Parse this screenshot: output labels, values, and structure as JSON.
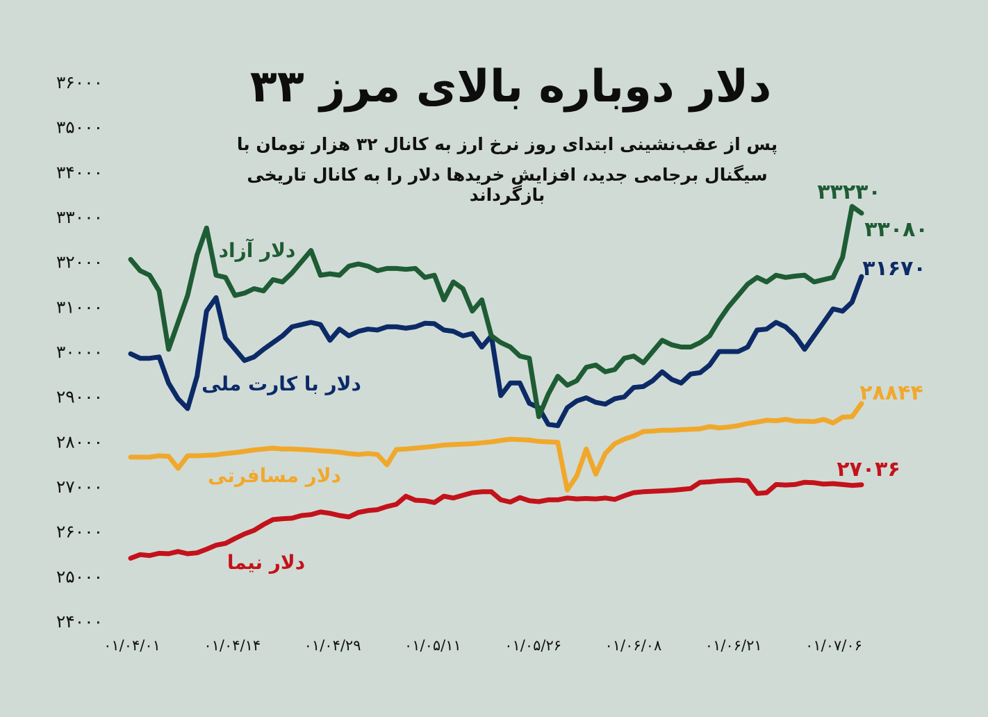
{
  "chart_data": {
    "type": "line",
    "title": "دلار دوباره بالای مرز ۳۳",
    "subtitle": [
      "پس از عقب‌نشینی ابتدای روز نرخ ارز به کانال ۳۲ هزار تومان با",
      "سیگنال برجامی جدید، افزایش خریدها دلار را به کانال تاریخی بازگرداند"
    ],
    "ylim": [
      24000,
      36000
    ],
    "yticks": [
      "۳۶۰۰۰",
      "۳۵۰۰۰",
      "۳۴۰۰۰",
      "۳۳۰۰۰",
      "۳۲۰۰۰",
      "۳۱۰۰۰",
      "۳۰۰۰۰",
      "۲۹۰۰۰",
      "۲۸۰۰۰",
      "۲۷۰۰۰",
      "۲۶۰۰۰",
      "۲۵۰۰۰",
      "۲۴۰۰۰"
    ],
    "xticks": [
      "۰۱/۰۴/۰۱",
      "۰۱/۰۴/۱۴",
      "۰۱/۰۴/۲۹",
      "۰۱/۰۵/۱۱",
      "۰۱/۰۵/۲۶",
      "۰۱/۰۶/۰۸",
      "۰۱/۰۶/۲۱",
      "۰۱/۰۷/۰۶"
    ],
    "grid": false,
    "legend": "inline labels",
    "series": [
      {
        "name": "دلار آزاد",
        "color": "#1e5c34",
        "end_labels": [
          "۳۳۲۳۰",
          "۳۳۰۸۰"
        ],
        "values": [
          32050,
          31800,
          31700,
          31350,
          30050,
          30650,
          31250,
          32150,
          32750,
          31700,
          31650,
          31250,
          31300,
          31400,
          31350,
          31600,
          31550,
          31750,
          32000,
          32250,
          31700,
          31730,
          31700,
          31900,
          31950,
          31900,
          31800,
          31850,
          31850,
          31830,
          31850,
          31650,
          31700,
          31150,
          31550,
          31400,
          30900,
          31150,
          30350,
          30200,
          30100,
          29900,
          29850,
          28550,
          29050,
          29450,
          29250,
          29350,
          29650,
          29700,
          29550,
          29600,
          29850,
          29900,
          29750,
          30000,
          30250,
          30150,
          30100,
          30100,
          30200,
          30350,
          30700,
          31000,
          31250,
          31500,
          31650,
          31550,
          31700,
          31650,
          31680,
          31700,
          31550,
          31600,
          31650,
          32100,
          33230,
          33080
        ]
      },
      {
        "name": "دلار با کارت ملی",
        "color": "#0c2a66",
        "end_labels": [
          "۳۱۶۷۰"
        ],
        "values": [
          29950,
          29850,
          29850,
          29880,
          29300,
          28950,
          28730,
          29450,
          30900,
          31200,
          30300,
          30050,
          29800,
          29880,
          30050,
          30200,
          30350,
          30550,
          30600,
          30650,
          30600,
          30250,
          30500,
          30350,
          30450,
          30500,
          30480,
          30550,
          30550,
          30520,
          30550,
          30630,
          30620,
          30480,
          30450,
          30350,
          30400,
          30100,
          30350,
          29020,
          29300,
          29300,
          28850,
          28750,
          28380,
          28350,
          28750,
          28900,
          28970,
          28870,
          28830,
          28950,
          28990,
          29200,
          29220,
          29350,
          29550,
          29380,
          29300,
          29500,
          29530,
          29700,
          30000,
          30000,
          30000,
          30100,
          30480,
          30500,
          30650,
          30550,
          30350,
          30050,
          30350,
          30650,
          30950,
          30900,
          31100,
          31670
        ]
      },
      {
        "name": "دلار مسافرتی",
        "color": "#f0a82c",
        "end_labels": [
          "۲۸۸۴۴"
        ],
        "values": [
          27650,
          27650,
          27650,
          27680,
          27670,
          27400,
          27680,
          27680,
          27690,
          27700,
          27730,
          27750,
          27780,
          27810,
          27830,
          27850,
          27830,
          27830,
          27820,
          27810,
          27790,
          27780,
          27760,
          27730,
          27710,
          27730,
          27710,
          27480,
          27820,
          27830,
          27850,
          27870,
          27890,
          27920,
          27930,
          27940,
          27950,
          27970,
          27990,
          28020,
          28050,
          28040,
          28030,
          28000,
          27990,
          27980,
          26920,
          27230,
          27830,
          27270,
          27730,
          27950,
          28050,
          28120,
          28220,
          28230,
          28250,
          28250,
          28260,
          28270,
          28280,
          28330,
          28300,
          28320,
          28350,
          28400,
          28430,
          28470,
          28460,
          28490,
          28450,
          28450,
          28440,
          28490,
          28410,
          28540,
          28550,
          28844
        ]
      },
      {
        "name": "دلار نیما",
        "color": "#c3121a",
        "end_labels": [
          "۲۷۰۳۶"
        ],
        "values": [
          25400,
          25480,
          25460,
          25510,
          25500,
          25550,
          25500,
          25520,
          25600,
          25690,
          25730,
          25840,
          25940,
          26020,
          26150,
          26260,
          26280,
          26290,
          26350,
          26370,
          26430,
          26400,
          26350,
          26320,
          26420,
          26460,
          26480,
          26550,
          26600,
          26780,
          26690,
          26680,
          26640,
          26780,
          26740,
          26800,
          26860,
          26880,
          26880,
          26700,
          26650,
          26750,
          26680,
          26660,
          26700,
          26700,
          26740,
          26720,
          26730,
          26720,
          26740,
          26710,
          26790,
          26860,
          26880,
          26890,
          26900,
          26910,
          26930,
          26950,
          27090,
          27100,
          27120,
          27130,
          27140,
          27120,
          26840,
          26860,
          27040,
          27030,
          27040,
          27090,
          27080,
          27050,
          27060,
          27040,
          27020,
          27036
        ]
      }
    ]
  }
}
